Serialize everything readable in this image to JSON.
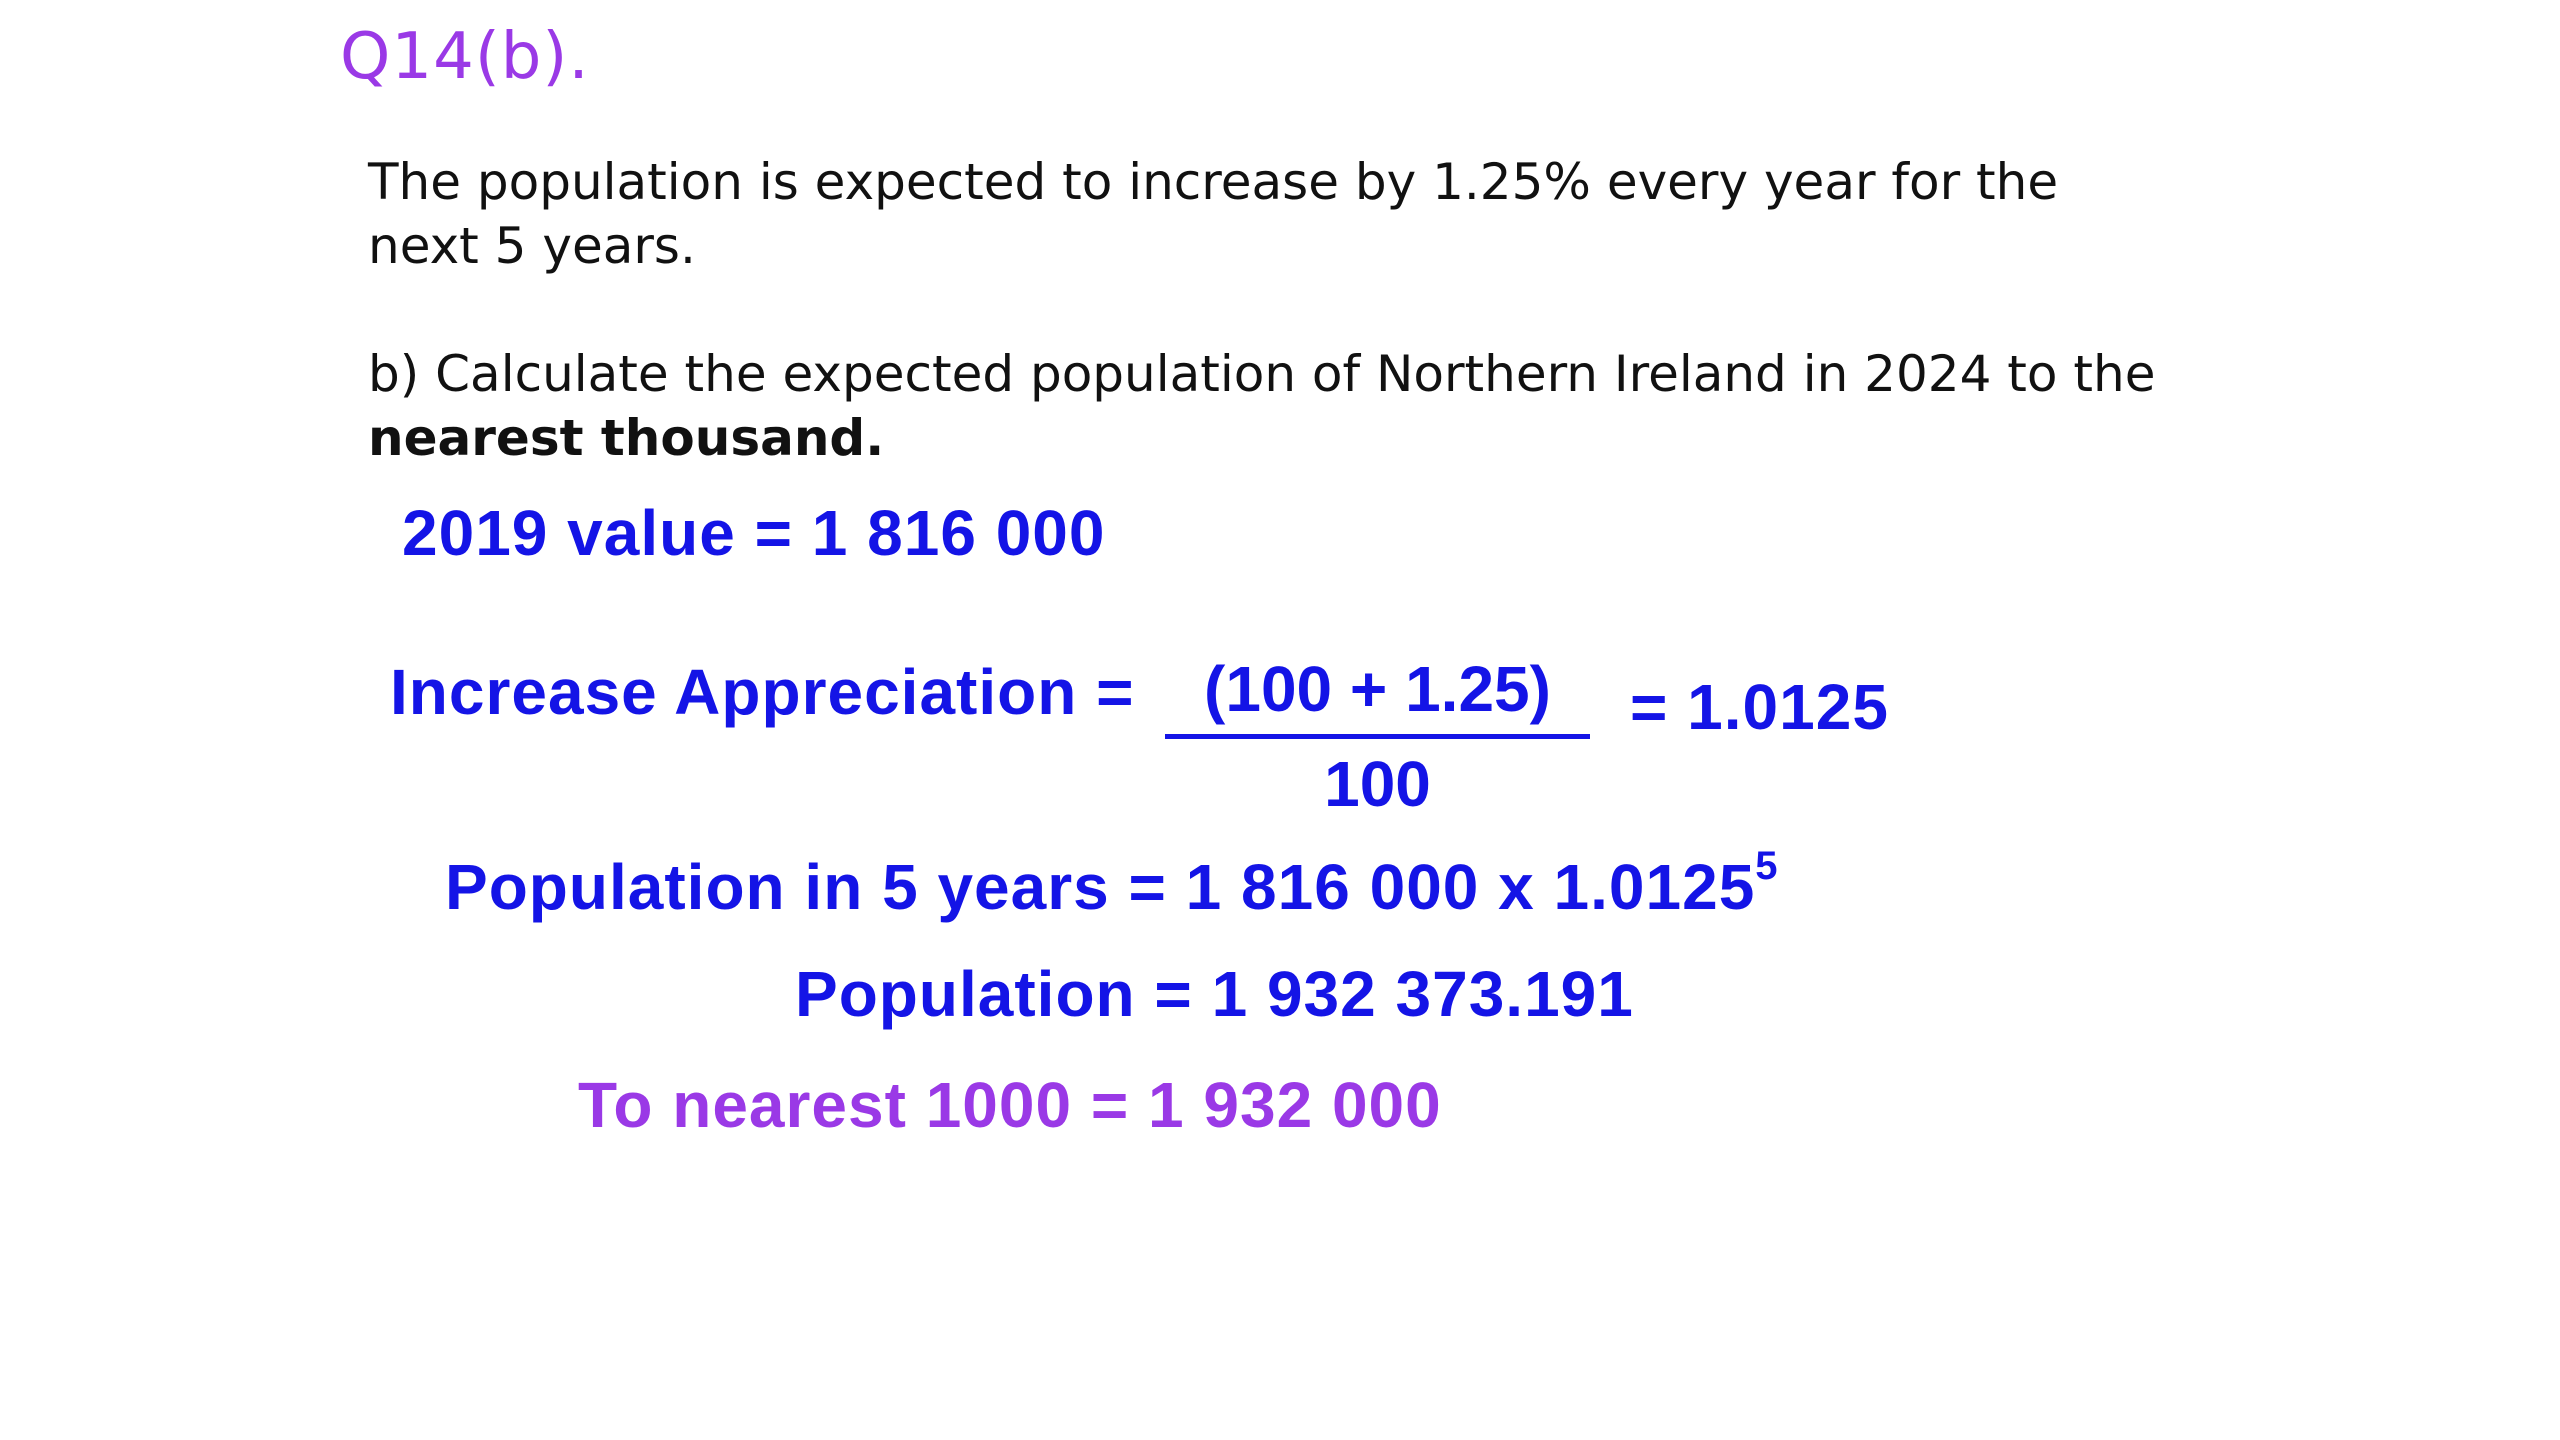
{
  "question": {
    "title": "Q14(b).",
    "intro_line1": "The population is expected to increase by 1.25% every year for the",
    "intro_line2": "next 5 years.",
    "part_line1": "b) Calculate the expected population of Northern Ireland in 2024 to the",
    "part_line2_bold": "nearest thousand."
  },
  "working": {
    "value_2019": "2019 value = 1 816 000",
    "increase_label": "Increase Appreciation =",
    "fraction_numerator": "(100 + 1.25)",
    "fraction_denominator": "100",
    "increase_result": "= 1.0125",
    "population_5_years": "Population in 5 years = 1 816 000 x 1.0125",
    "population_5_years_exponent": "5",
    "population": "Population = 1 932 373.191",
    "nearest_1000": "To nearest 1000 = 1 932 000"
  },
  "colors": {
    "title": "#9a39e6",
    "working": "#1414e6",
    "final_answer": "#9a39e6",
    "text": "#111111"
  }
}
